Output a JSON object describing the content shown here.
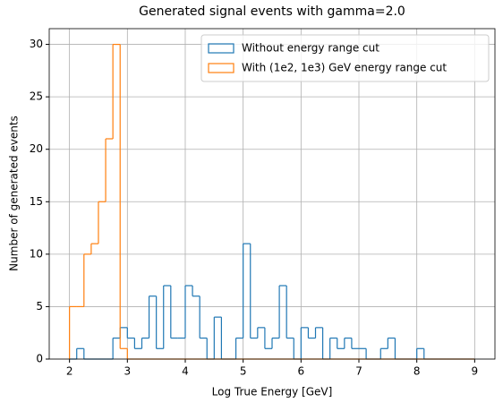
{
  "chart_data": {
    "type": "histogram",
    "title": "Generated signal events with gamma=2.0",
    "xlabel": "Log True Energy [GeV]",
    "ylabel": "Number of generated events",
    "bins": [
      2,
      2.125,
      2.25,
      2.375,
      2.5,
      2.625,
      2.75,
      2.875,
      3,
      3.125,
      3.25,
      3.375,
      3.5,
      3.625,
      3.75,
      3.875,
      4,
      4.125,
      4.25,
      4.375,
      4.5,
      4.625,
      4.75,
      4.875,
      5,
      5.125,
      5.25,
      5.375,
      5.5,
      5.625,
      5.75,
      5.875,
      6,
      6.125,
      6.25,
      6.375,
      6.5,
      6.625,
      6.75,
      6.875,
      7,
      7.125,
      7.25,
      7.375,
      7.5,
      7.625,
      7.75,
      7.875,
      8,
      8.125,
      8.25,
      8.375,
      8.5,
      8.625,
      8.75,
      8.875,
      9
    ],
    "series": [
      {
        "name": "Without energy range cut",
        "color": "#1f77b4",
        "values": [
          0,
          1,
          0,
          0,
          0,
          0,
          2,
          3,
          2,
          1,
          2,
          6,
          1,
          7,
          2,
          2,
          7,
          6,
          2,
          0,
          4,
          0,
          0,
          2,
          11,
          2,
          3,
          1,
          2,
          7,
          2,
          0,
          3,
          2,
          3,
          0,
          2,
          1,
          2,
          1,
          1,
          0,
          0,
          1,
          2,
          0,
          0,
          0,
          1,
          0,
          0,
          0,
          0,
          0,
          0,
          0
        ]
      },
      {
        "name": "With (1e2, 1e3) GeV energy range cut",
        "color": "#ff7f0e",
        "values": [
          5,
          5,
          10,
          11,
          15,
          21,
          30,
          1,
          0,
          0,
          0,
          0,
          0,
          0,
          0,
          0,
          0,
          0,
          0,
          0,
          0,
          0,
          0,
          0,
          0,
          0,
          0,
          0,
          0,
          0,
          0,
          0,
          0,
          0,
          0,
          0,
          0,
          0,
          0,
          0,
          0,
          0,
          0,
          0,
          0,
          0,
          0,
          0,
          0,
          0,
          0,
          0,
          0,
          0,
          0,
          0
        ]
      }
    ],
    "xlim": [
      1.65,
      9.35
    ],
    "xticks": [
      2,
      3,
      4,
      5,
      6,
      7,
      8,
      9
    ],
    "ylim": [
      0,
      31.5
    ],
    "yticks": [
      0,
      5,
      10,
      15,
      20,
      25,
      30
    ],
    "grid": true,
    "legend": "upper right"
  }
}
